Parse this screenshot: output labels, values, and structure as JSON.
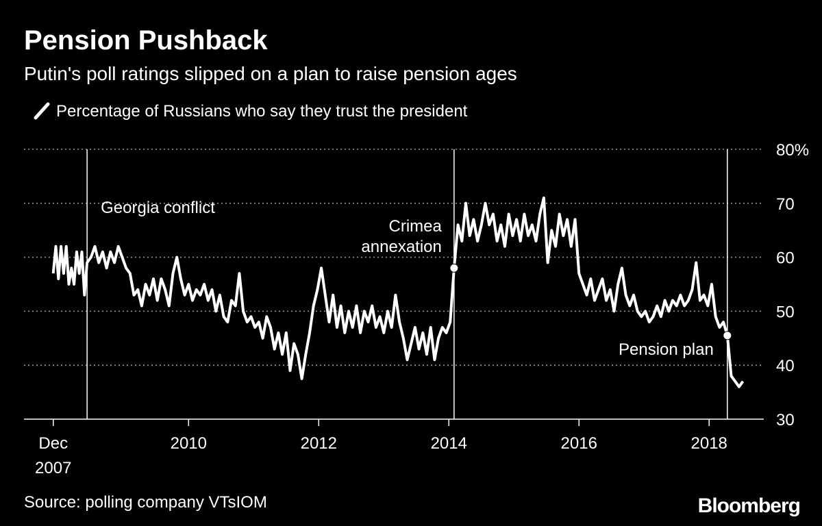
{
  "chart_data": {
    "type": "line",
    "title": "Pension Pushback",
    "subtitle": "Putin's poll ratings slipped on a plan to raise pension ages",
    "source": "Source: polling company VTsIOM",
    "brand": "Bloomberg",
    "xlim": [
      2007.47,
      2018.84
    ],
    "xticks": [
      {
        "value": 2007.92,
        "label": "Dec 2007"
      },
      2010,
      2012,
      2014,
      2016,
      2018
    ],
    "ylim": [
      30,
      80
    ],
    "yticks": [
      30,
      40,
      50,
      60,
      70,
      {
        "value": 80,
        "label": "80%"
      }
    ],
    "grid": true,
    "annotations": [
      {
        "text": "Georgia conflict",
        "x": 2008.44
      },
      {
        "text": "Crimea annexation",
        "x": 2014.08,
        "y": 58
      },
      {
        "text": "Pension plan",
        "x": 2018.28,
        "y": 45.5
      }
    ],
    "series": [
      {
        "name": "Percentage of Russians who say they trust the president",
        "color": "#ffffff",
        "x": [
          2007.92,
          2007.96,
          2008.0,
          2008.04,
          2008.08,
          2008.12,
          2008.16,
          2008.2,
          2008.24,
          2008.28,
          2008.32,
          2008.36,
          2008.4,
          2008.44,
          2008.5,
          2008.56,
          2008.62,
          2008.68,
          2008.74,
          2008.8,
          2008.86,
          2008.92,
          2008.98,
          2009.04,
          2009.1,
          2009.16,
          2009.22,
          2009.28,
          2009.34,
          2009.4,
          2009.46,
          2009.52,
          2009.58,
          2009.64,
          2009.7,
          2009.76,
          2009.82,
          2009.88,
          2009.94,
          2010.0,
          2010.06,
          2010.12,
          2010.18,
          2010.24,
          2010.3,
          2010.36,
          2010.42,
          2010.48,
          2010.54,
          2010.6,
          2010.66,
          2010.72,
          2010.78,
          2010.84,
          2010.9,
          2010.96,
          2011.02,
          2011.08,
          2011.14,
          2011.2,
          2011.26,
          2011.32,
          2011.38,
          2011.44,
          2011.5,
          2011.56,
          2011.62,
          2011.68,
          2011.74,
          2011.8,
          2011.86,
          2011.92,
          2011.98,
          2012.04,
          2012.1,
          2012.16,
          2012.22,
          2012.28,
          2012.34,
          2012.4,
          2012.46,
          2012.52,
          2012.58,
          2012.64,
          2012.7,
          2012.76,
          2012.82,
          2012.88,
          2012.94,
          2013.0,
          2013.06,
          2013.12,
          2013.18,
          2013.24,
          2013.3,
          2013.36,
          2013.42,
          2013.48,
          2013.54,
          2013.6,
          2013.66,
          2013.72,
          2013.78,
          2013.84,
          2013.9,
          2013.96,
          2014.02,
          2014.08,
          2014.14,
          2014.2,
          2014.26,
          2014.32,
          2014.38,
          2014.44,
          2014.5,
          2014.56,
          2014.62,
          2014.68,
          2014.74,
          2014.8,
          2014.86,
          2014.92,
          2014.98,
          2015.04,
          2015.1,
          2015.16,
          2015.22,
          2015.28,
          2015.34,
          2015.4,
          2015.46,
          2015.52,
          2015.58,
          2015.64,
          2015.7,
          2015.76,
          2015.82,
          2015.88,
          2015.94,
          2016.0,
          2016.06,
          2016.12,
          2016.18,
          2016.24,
          2016.3,
          2016.36,
          2016.42,
          2016.48,
          2016.54,
          2016.6,
          2016.66,
          2016.72,
          2016.78,
          2016.84,
          2016.9,
          2016.96,
          2017.02,
          2017.08,
          2017.14,
          2017.2,
          2017.26,
          2017.32,
          2017.38,
          2017.44,
          2017.5,
          2017.56,
          2017.62,
          2017.68,
          2017.74,
          2017.8,
          2017.86,
          2017.92,
          2017.98,
          2018.04,
          2018.1,
          2018.16,
          2018.22,
          2018.28,
          2018.34,
          2018.4,
          2018.46,
          2018.52
        ],
        "values": [
          57,
          62,
          56,
          62,
          57,
          62,
          55,
          58,
          55,
          61,
          57,
          61,
          53,
          59,
          60,
          62,
          59,
          61,
          58,
          61,
          59,
          62,
          60,
          58,
          57,
          53,
          54,
          51,
          55,
          53,
          56,
          52,
          56,
          54,
          51,
          57,
          60,
          56,
          53,
          55,
          52,
          54,
          53,
          55,
          52,
          54,
          50,
          53,
          49,
          48,
          52,
          51,
          57,
          50,
          48,
          49,
          47,
          48,
          45,
          49,
          47,
          43,
          46,
          42,
          46,
          39,
          44,
          42,
          37.5,
          42,
          46,
          51,
          54,
          58,
          53,
          48,
          53,
          47,
          51,
          46,
          50,
          47,
          51,
          46,
          50,
          48,
          51,
          47,
          49,
          46,
          50,
          47,
          53,
          48,
          45,
          41,
          44,
          47,
          43,
          46,
          42,
          47,
          41,
          45,
          47,
          46,
          48,
          58,
          66,
          63,
          70,
          64,
          67,
          63,
          66,
          70,
          66,
          68,
          63,
          66,
          62,
          68,
          64,
          67,
          63,
          68,
          64,
          66,
          63,
          68,
          71,
          59,
          65,
          62,
          68,
          64,
          67,
          62,
          67,
          57,
          55,
          53,
          56,
          52,
          54,
          56,
          52,
          54,
          50,
          55,
          58,
          53,
          51,
          53,
          50,
          49,
          50,
          48,
          49,
          51,
          49,
          52,
          50,
          52,
          51,
          53,
          51,
          52,
          54,
          59,
          52,
          53,
          51,
          55,
          49,
          47,
          48,
          45.5,
          38,
          37,
          36,
          37
        ]
      }
    ]
  }
}
